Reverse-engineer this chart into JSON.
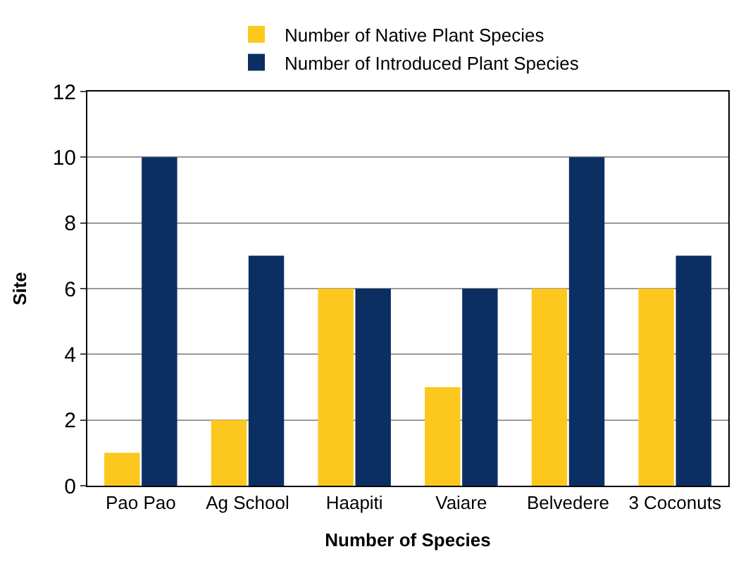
{
  "chart_data": {
    "type": "bar",
    "xlabel": "Number of Species",
    "ylabel": "Site",
    "categories": [
      "Pao Pao",
      "Ag School",
      "Haapiti",
      "Vaiare",
      "Belvedere",
      "3 Coconuts"
    ],
    "series": [
      {
        "name": "Number of Native Plant Species",
        "color": "#fcc81e",
        "values": [
          1,
          2,
          6,
          3,
          6,
          6
        ]
      },
      {
        "name": "Number of Introduced Plant Species",
        "color": "#0c2f63",
        "values": [
          10,
          7,
          6,
          6,
          10,
          7
        ]
      }
    ],
    "ylim": [
      0,
      12
    ],
    "yticks": [
      0,
      2,
      4,
      6,
      8,
      10,
      12
    ],
    "grid": "y",
    "legend": "top"
  }
}
